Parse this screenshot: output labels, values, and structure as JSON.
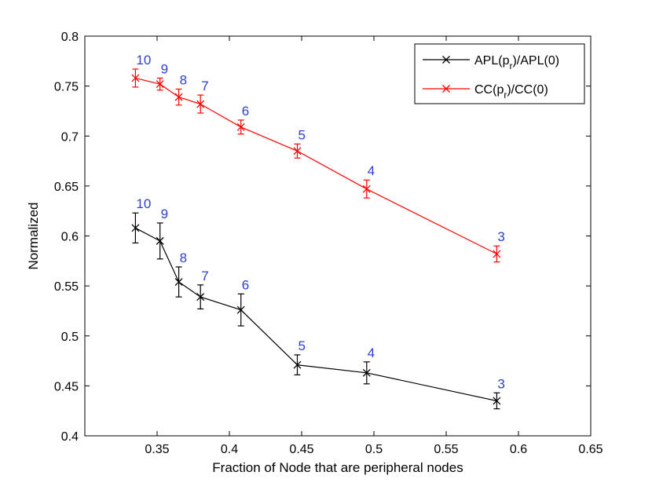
{
  "chart_data": {
    "type": "line",
    "title": "",
    "xlabel": "Fraction of Node that are peripheral nodes",
    "ylabel": "Normalized",
    "xlim": [
      0.3,
      0.65
    ],
    "ylim": [
      0.4,
      0.8
    ],
    "xticks": [
      0.35,
      0.4,
      0.45,
      0.5,
      0.55,
      0.6,
      0.65
    ],
    "xtick_labels": [
      "0.35",
      "0.4",
      "0.45",
      "0.5",
      "0.55",
      "0.6",
      "0.65"
    ],
    "yticks": [
      0.4,
      0.45,
      0.5,
      0.55,
      0.6,
      0.65,
      0.7,
      0.75,
      0.8
    ],
    "ytick_labels": [
      "0.4",
      "0.45",
      "0.5",
      "0.55",
      "0.6",
      "0.65",
      "0.7",
      "0.75",
      "0.8"
    ],
    "grid": false,
    "legend_position": "top-right",
    "x": [
      0.335,
      0.352,
      0.365,
      0.38,
      0.408,
      0.447,
      0.495,
      0.585
    ],
    "point_labels": [
      "10",
      "9",
      "8",
      "7",
      "6",
      "5",
      "4",
      "3"
    ],
    "point_label_color": "#2d3fd1",
    "series": [
      {
        "name": "APL(p_r)/APL(0)",
        "legend_main": "APL(p",
        "legend_sub": "r",
        "legend_tail": ")/APL(0)",
        "color": "#000000",
        "marker": "x",
        "values": [
          0.608,
          0.595,
          0.554,
          0.539,
          0.526,
          0.471,
          0.463,
          0.435
        ],
        "errors": [
          0.015,
          0.018,
          0.015,
          0.012,
          0.016,
          0.01,
          0.011,
          0.008
        ]
      },
      {
        "name": "CC(p_r)/CC(0)",
        "legend_main": "CC(p",
        "legend_sub": "r",
        "legend_tail": ")/CC(0)",
        "color": "#ff0000",
        "marker": "x",
        "values": [
          0.758,
          0.752,
          0.739,
          0.732,
          0.709,
          0.685,
          0.647,
          0.582
        ],
        "errors": [
          0.009,
          0.006,
          0.008,
          0.009,
          0.007,
          0.007,
          0.009,
          0.008
        ]
      }
    ]
  }
}
